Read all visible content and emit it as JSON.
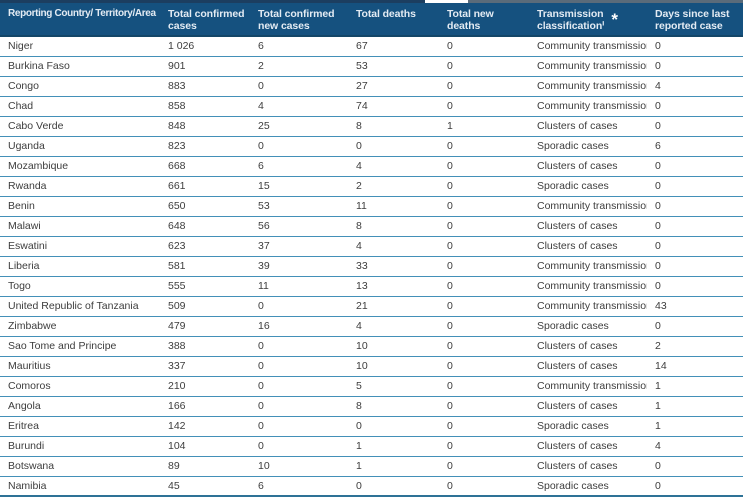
{
  "colors": {
    "header_bg": "#15517F",
    "header_text": "#E3EBF3",
    "asterisk": "#FFFFFF",
    "row_separator": "#4390B8",
    "header_border": "#134668",
    "bottom_border": "#2E7296",
    "body_text": "#3D3D3D",
    "top_strip_left": "#1C3E60",
    "top_strip_notch": "#FFFFFF",
    "top_strip_right": "#5A6B7A"
  },
  "table": {
    "columns": [
      {
        "id": "country",
        "label": "Reporting Country/ Territory/Area"
      },
      {
        "id": "total-confirmed-cases",
        "label": "Total confirmed\ncases"
      },
      {
        "id": "total-confirmed-new-cases",
        "label": "Total confirmed\nnew cases"
      },
      {
        "id": "total-deaths",
        "label": "Total deaths"
      },
      {
        "id": "total-new-deaths",
        "label": "Total new deaths"
      },
      {
        "id": "transmission-classification",
        "label": "Transmission\nclassificationⁱ",
        "asterisk": "*"
      },
      {
        "id": "days-since-last-reported-case",
        "label": "Days since last\nreported case"
      }
    ],
    "rows": [
      [
        "Niger",
        "1 026",
        "6",
        "67",
        "0",
        "Community transmission",
        "0"
      ],
      [
        "Burkina Faso",
        "901",
        "2",
        "53",
        "0",
        "Community transmission",
        "0"
      ],
      [
        "Congo",
        "883",
        "0",
        "27",
        "0",
        "Community transmission",
        "4"
      ],
      [
        "Chad",
        "858",
        "4",
        "74",
        "0",
        "Community transmission",
        "0"
      ],
      [
        "Cabo Verde",
        "848",
        "25",
        "8",
        "1",
        "Clusters of cases",
        "0"
      ],
      [
        "Uganda",
        "823",
        "0",
        "0",
        "0",
        "Sporadic cases",
        "6"
      ],
      [
        "Mozambique",
        "668",
        "6",
        "4",
        "0",
        "Clusters of cases",
        "0"
      ],
      [
        "Rwanda",
        "661",
        "15",
        "2",
        "0",
        "Sporadic cases",
        "0"
      ],
      [
        "Benin",
        "650",
        "53",
        "11",
        "0",
        "Community transmission",
        "0"
      ],
      [
        "Malawi",
        "648",
        "56",
        "8",
        "0",
        "Clusters of cases",
        "0"
      ],
      [
        "Eswatini",
        "623",
        "37",
        "4",
        "0",
        "Clusters of cases",
        "0"
      ],
      [
        "Liberia",
        "581",
        "39",
        "33",
        "0",
        "Community transmission",
        "0"
      ],
      [
        "Togo",
        "555",
        "11",
        "13",
        "0",
        "Community transmission",
        "0"
      ],
      [
        "United Republic of Tanzania",
        "509",
        "0",
        "21",
        "0",
        "Community transmission",
        "43"
      ],
      [
        "Zimbabwe",
        "479",
        "16",
        "4",
        "0",
        "Sporadic cases",
        "0"
      ],
      [
        "Sao Tome and Principe",
        "388",
        "0",
        "10",
        "0",
        "Clusters of cases",
        "2"
      ],
      [
        "Mauritius",
        "337",
        "0",
        "10",
        "0",
        "Clusters of cases",
        "14"
      ],
      [
        "Comoros",
        "210",
        "0",
        "5",
        "0",
        "Community transmission",
        "1"
      ],
      [
        "Angola",
        "166",
        "0",
        "8",
        "0",
        "Clusters of cases",
        "1"
      ],
      [
        "Eritrea",
        "142",
        "0",
        "0",
        "0",
        "Sporadic cases",
        "1"
      ],
      [
        "Burundi",
        "104",
        "0",
        "1",
        "0",
        "Clusters of cases",
        "4"
      ],
      [
        "Botswana",
        "89",
        "10",
        "1",
        "0",
        "Clusters of cases",
        "0"
      ],
      [
        "Namibia",
        "45",
        "6",
        "0",
        "0",
        "Sporadic cases",
        "0"
      ]
    ]
  }
}
